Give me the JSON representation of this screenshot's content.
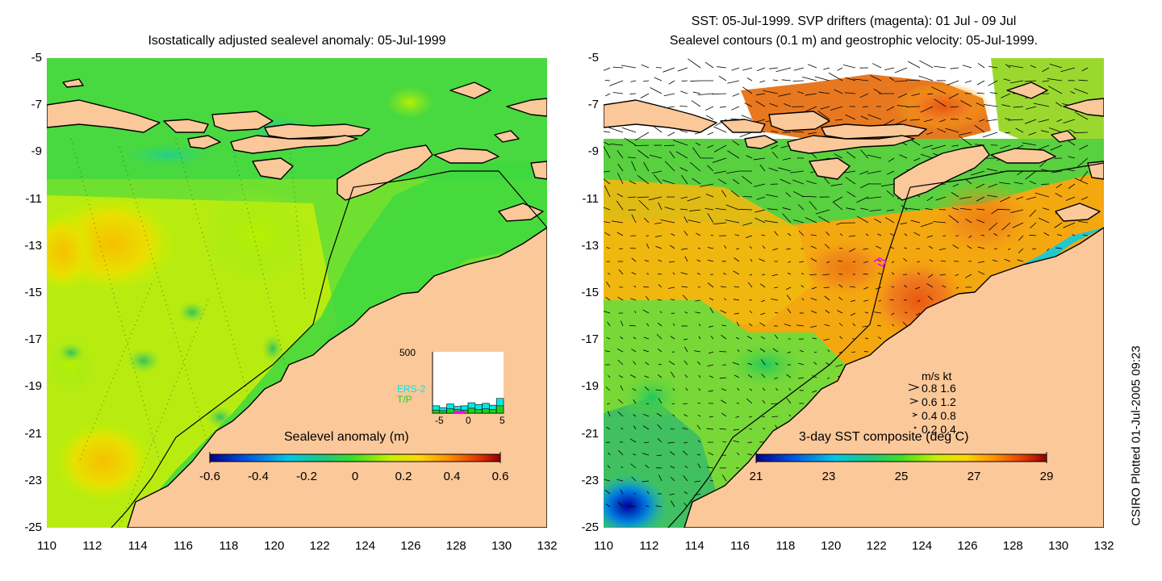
{
  "left_map": {
    "title": "Isostatically adjusted sealevel anomaly: 05-Jul-1999",
    "colorbar": {
      "title": "Sealevel anomaly (m)",
      "ticks": [
        "-0.6",
        "-0.4",
        "-0.2",
        "0",
        "0.2",
        "0.4",
        "0.6"
      ],
      "colors": [
        "#00008b",
        "#0050e0",
        "#00c8e8",
        "#20c878",
        "#40e020",
        "#c8f000",
        "#ffd800",
        "#ff9000",
        "#e03000",
        "#900000"
      ]
    },
    "inset": {
      "y_max_label": "500",
      "series": [
        "ERS-2",
        "T/P"
      ],
      "series_colors": [
        "#00e8e8",
        "#20d020"
      ],
      "x_ticks": [
        "-5",
        "0",
        "5"
      ],
      "bins_ers2": [
        60,
        45,
        75,
        55,
        60,
        85,
        70,
        80,
        65,
        120
      ],
      "bins_tp": [
        25,
        20,
        35,
        30,
        25,
        40,
        30,
        35,
        30,
        60
      ],
      "y_range": [
        0,
        500
      ]
    }
  },
  "right_map": {
    "title_line1": "SST: 05-Jul-1999. SVP drifters (magenta): 01 Jul - 09 Jul",
    "title_line2": "Sealevel contours (0.1 m) and geostrophic velocity: 05-Jul-1999.",
    "colorbar": {
      "title": "3-day SST composite (deg C)",
      "ticks": [
        "21",
        "23",
        "25",
        "27",
        "29"
      ],
      "colors": [
        "#00008b",
        "#0050e0",
        "#00c8e8",
        "#20c878",
        "#40e020",
        "#c8f000",
        "#ffd800",
        "#ff9000",
        "#e03000",
        "#900000"
      ]
    },
    "velocity_legend": {
      "header": "m/s  kt",
      "rows": [
        "0.8  1.6",
        "0.6  1.2",
        "0.4  0.8",
        "0.2  0.4"
      ]
    }
  },
  "axes": {
    "lat_labels": [
      "-5",
      "-7",
      "-9",
      "-11",
      "-13",
      "-15",
      "-17",
      "-19",
      "-21",
      "-23",
      "-25"
    ],
    "lon_labels": [
      "110",
      "112",
      "114",
      "116",
      "118",
      "120",
      "122",
      "124",
      "126",
      "128",
      "130",
      "132"
    ],
    "lat_range": [
      -25,
      -5
    ],
    "lon_range": [
      110,
      132
    ]
  },
  "footer": {
    "credit": "CSIRO Plotted 01-Jul-2005 09:23"
  },
  "colors": {
    "land": "#fbc89a",
    "coastline": "#000000",
    "drifter": "#ff00ff"
  }
}
